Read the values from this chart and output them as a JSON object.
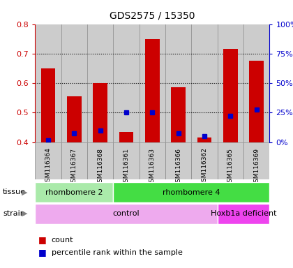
{
  "title": "GDS2575 / 15350",
  "samples": [
    "GSM116364",
    "GSM116367",
    "GSM116368",
    "GSM116361",
    "GSM116363",
    "GSM116366",
    "GSM116362",
    "GSM116365",
    "GSM116369"
  ],
  "count_values": [
    0.65,
    0.555,
    0.6,
    0.435,
    0.75,
    0.585,
    0.415,
    0.715,
    0.675
  ],
  "percentile_values": [
    0.405,
    0.43,
    0.44,
    0.5,
    0.5,
    0.43,
    0.42,
    0.49,
    0.51
  ],
  "bar_bottom": 0.4,
  "ylim": [
    0.4,
    0.8
  ],
  "yticks_left": [
    0.4,
    0.5,
    0.6,
    0.7,
    0.8
  ],
  "yticks_right_vals": [
    0,
    25,
    50,
    75,
    100
  ],
  "ytick_labels_right": [
    "0%",
    "25%",
    "50%",
    "75%",
    "100%"
  ],
  "bar_color": "#cc0000",
  "marker_color": "#0000cc",
  "tissue_groups": [
    {
      "label": "rhombomere 2",
      "start": 0,
      "end": 3,
      "color": "#aaeaaa"
    },
    {
      "label": "rhombomere 4",
      "start": 3,
      "end": 9,
      "color": "#44dd44"
    }
  ],
  "strain_groups": [
    {
      "label": "control",
      "start": 0,
      "end": 7,
      "color": "#eeaaee"
    },
    {
      "label": "Hoxb1a deficient",
      "start": 7,
      "end": 9,
      "color": "#ee44ee"
    }
  ],
  "legend_count_label": "count",
  "legend_percentile_label": "percentile rank within the sample",
  "ylabel_left_color": "#cc0000",
  "ylabel_right_color": "#0000cc",
  "bg_color": "#ffffff",
  "grid_color": "#000000",
  "col_bg_color": "#cccccc",
  "col_border_color": "#888888"
}
